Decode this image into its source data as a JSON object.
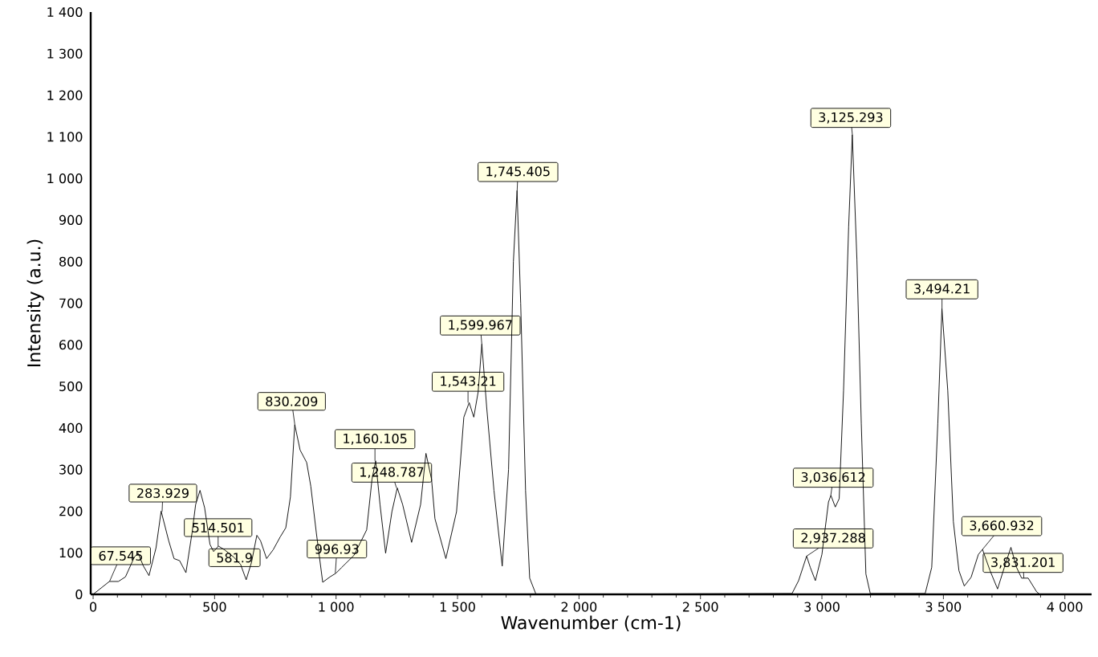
{
  "chart_data": {
    "type": "line",
    "xlabel": "Wavenumber (cm-1)",
    "ylabel": "Intensity (a.u.)",
    "color": "#000000",
    "x": [
      0,
      67,
      104,
      133,
      170,
      185,
      207,
      230,
      259,
      280,
      311,
      333,
      356,
      382,
      407,
      422,
      440,
      459,
      481,
      496,
      516,
      541,
      578,
      607,
      630,
      652,
      674,
      689,
      714,
      741,
      770,
      793,
      812,
      830,
      852,
      879,
      896,
      919,
      945,
      975,
      1000,
      1022,
      1074,
      1126,
      1148,
      1163,
      1181,
      1204,
      1230,
      1252,
      1274,
      1311,
      1348,
      1370,
      1393,
      1407,
      1452,
      1496,
      1526,
      1548,
      1567,
      1585,
      1600,
      1620,
      1650,
      1684,
      1710,
      1730,
      1745,
      1760,
      1780,
      1797,
      1823,
      2877,
      2904,
      2937,
      2952,
      2973,
      3000,
      3027,
      3037,
      3055,
      3071,
      3089,
      3110,
      3125,
      3144,
      3162,
      3181,
      3199,
      3425,
      3452,
      3477,
      3494,
      3518,
      3541,
      3564,
      3586,
      3614,
      3644,
      3661,
      3692,
      3723,
      3751,
      3778,
      3801,
      3822,
      3849,
      3884,
      3897
    ],
    "values": [
      0,
      31,
      31,
      42,
      90,
      99,
      68,
      45,
      112,
      200,
      129,
      86,
      81,
      52,
      147,
      216,
      250,
      208,
      120,
      103,
      116,
      107,
      90,
      72,
      35,
      77,
      142,
      129,
      86,
      107,
      138,
      160,
      234,
      408,
      347,
      317,
      260,
      147,
      29,
      42,
      51,
      64,
      94,
      155,
      277,
      321,
      216,
      99,
      199,
      256,
      216,
      125,
      216,
      339,
      277,
      182,
      86,
      199,
      426,
      461,
      426,
      487,
      602,
      450,
      250,
      68,
      300,
      800,
      971,
      700,
      250,
      39,
      0,
      2,
      33,
      92,
      65,
      33,
      96,
      222,
      238,
      210,
      230,
      490,
      884,
      1105,
      805,
      411,
      49,
      2,
      2,
      65,
      411,
      687,
      490,
      175,
      57,
      20,
      41,
      96,
      108,
      57,
      13,
      65,
      113,
      65,
      39,
      39,
      6,
      0
    ],
    "xlim": [
      -10,
      4110
    ],
    "ylim": [
      0,
      1400
    ],
    "xticks": [
      0,
      500,
      {
        "value": 1000,
        "label": "1 000"
      },
      {
        "value": 1500,
        "label": "1 500"
      },
      {
        "value": 2000,
        "label": "2 000"
      },
      {
        "value": 2500,
        "label": "2 500"
      },
      {
        "value": 3000,
        "label": "3 000"
      },
      {
        "value": 3500,
        "label": "3 500"
      },
      {
        "value": 4000,
        "label": "4 000"
      }
    ],
    "yticks": [
      0,
      100,
      200,
      300,
      400,
      500,
      600,
      700,
      800,
      900,
      {
        "value": 1000,
        "label": "1 000"
      },
      {
        "value": 1100,
        "label": "1 100"
      },
      {
        "value": 1200,
        "label": "1 200"
      },
      {
        "value": 1300,
        "label": "1 300"
      },
      {
        "value": 1400,
        "label": "1 400"
      }
    ],
    "annotations": [
      {
        "text": "67.545",
        "x": 67.545,
        "y": 31
      },
      {
        "text": "283.929",
        "x": 283.929,
        "y": 199
      },
      {
        "text": "514.501",
        "x": 514.501,
        "y": 116
      },
      {
        "text": "581.9",
        "x": 581.9,
        "y": 90
      },
      {
        "text": "830.209",
        "x": 830.209,
        "y": 408
      },
      {
        "text": "996.93",
        "x": 996.93,
        "y": 51
      },
      {
        "text": "1,160.105",
        "x": 1160.105,
        "y": 321
      },
      {
        "text": "1,248.787",
        "x": 1248.787,
        "y": 256
      },
      {
        "text": "1,543.21",
        "x": 1543.21,
        "y": 461
      },
      {
        "text": "1,599.967",
        "x": 1599.967,
        "y": 602
      },
      {
        "text": "1,745.405",
        "x": 1745.405,
        "y": 971
      },
      {
        "text": "2,937.288",
        "x": 2937.288,
        "y": 92
      },
      {
        "text": "3,036.612",
        "x": 3036.612,
        "y": 238
      },
      {
        "text": "3,125.293",
        "x": 3125.293,
        "y": 1105
      },
      {
        "text": "3,494.21",
        "x": 3494.21,
        "y": 687
      },
      {
        "text": "3,660.932",
        "x": 3660.932,
        "y": 108
      },
      {
        "text": "3,831.201",
        "x": 3831.201,
        "y": 39
      }
    ]
  }
}
